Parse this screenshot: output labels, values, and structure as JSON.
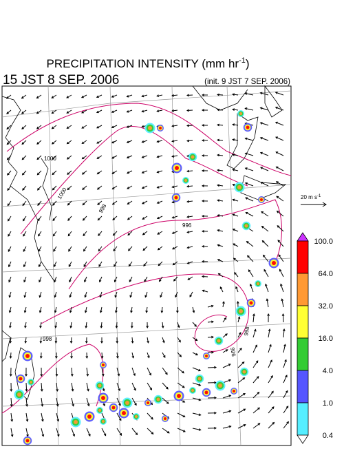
{
  "header": {
    "title": "PRECIPITATION INTENSITY (mm hr",
    "title_sup": "-1",
    "title_end": ")",
    "valid_time": "15 JST 8 SEP. 2006",
    "init_time": "(init. 9 JST 7 SEP. 2006)"
  },
  "wind_scale": {
    "label": "20 m s",
    "label_sup": "-1"
  },
  "contour_labels": [
    "1000",
    "1000",
    "998",
    "996",
    "996",
    "998",
    "998"
  ],
  "colorbar": {
    "labels": [
      "100.0",
      "64.0",
      "32.0",
      "16.0",
      "4.0",
      "1.0",
      "0.4"
    ],
    "colors": [
      "#ff0000",
      "#ff9933",
      "#ffff33",
      "#33cc33",
      "#5555ff",
      "#55eeff"
    ],
    "over_color": "#cc33ff",
    "under_color": "#ffffff"
  }
}
